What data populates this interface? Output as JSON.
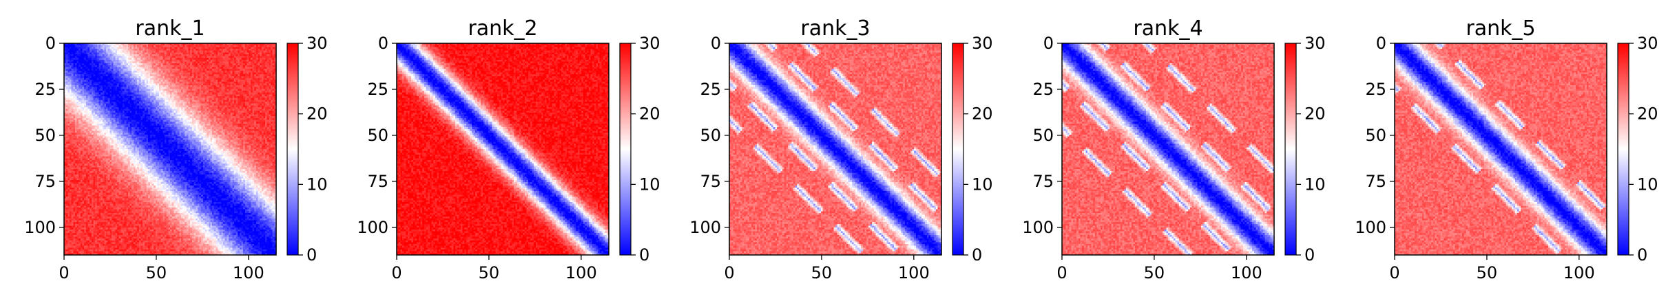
{
  "chart_data": [
    {
      "type": "heatmap",
      "title": "rank_1",
      "matrix_size": 116,
      "xlim": [
        0,
        115
      ],
      "ylim": [
        115,
        0
      ],
      "x_ticks": [
        0,
        50,
        100
      ],
      "y_ticks": [
        0,
        25,
        50,
        75,
        100
      ],
      "colorbar": {
        "min": 0,
        "max": 30,
        "ticks": [
          0,
          10,
          20,
          30
        ],
        "colors": [
          "#0000ff",
          "#ffffff",
          "#ff0000"
        ]
      },
      "diagonal_band_width": 20,
      "off_diagonal_level": 27,
      "diagonal_blob_offsets": []
    },
    {
      "type": "heatmap",
      "title": "rank_2",
      "matrix_size": 116,
      "xlim": [
        0,
        115
      ],
      "ylim": [
        115,
        0
      ],
      "x_ticks": [
        0,
        50,
        100
      ],
      "y_ticks": [
        0,
        25,
        50,
        75,
        100
      ],
      "colorbar": {
        "min": 0,
        "max": 30,
        "ticks": [
          0,
          10,
          20,
          30
        ],
        "colors": [
          "#0000ff",
          "#ffffff",
          "#ff0000"
        ]
      },
      "diagonal_band_width": 8,
      "off_diagonal_level": 29,
      "diagonal_blob_offsets": []
    },
    {
      "type": "heatmap",
      "title": "rank_3",
      "matrix_size": 116,
      "xlim": [
        0,
        115
      ],
      "ylim": [
        115,
        0
      ],
      "x_ticks": [
        0,
        50,
        100
      ],
      "y_ticks": [
        0,
        25,
        50,
        75,
        100
      ],
      "colorbar": {
        "min": 0,
        "max": 30,
        "ticks": [
          0,
          10,
          20,
          30
        ],
        "colors": [
          "#0000ff",
          "#ffffff",
          "#ff0000"
        ]
      },
      "diagonal_band_width": 8,
      "off_diagonal_level": 24,
      "diagonal_blob_offsets": [
        22,
        42
      ]
    },
    {
      "type": "heatmap",
      "title": "rank_4",
      "matrix_size": 116,
      "xlim": [
        0,
        115
      ],
      "ylim": [
        115,
        0
      ],
      "x_ticks": [
        0,
        50,
        100
      ],
      "y_ticks": [
        0,
        25,
        50,
        75,
        100
      ],
      "colorbar": {
        "min": 0,
        "max": 30,
        "ticks": [
          0,
          10,
          20,
          30
        ],
        "colors": [
          "#0000ff",
          "#ffffff",
          "#ff0000"
        ]
      },
      "diagonal_band_width": 8,
      "off_diagonal_level": 24,
      "diagonal_blob_offsets": [
        22,
        46
      ]
    },
    {
      "type": "heatmap",
      "title": "rank_5",
      "matrix_size": 116,
      "xlim": [
        0,
        115
      ],
      "ylim": [
        115,
        0
      ],
      "x_ticks": [
        0,
        50,
        100
      ],
      "y_ticks": [
        0,
        25,
        50,
        75,
        100
      ],
      "colorbar": {
        "min": 0,
        "max": 30,
        "ticks": [
          0,
          10,
          20,
          30
        ],
        "colors": [
          "#0000ff",
          "#ffffff",
          "#ff0000"
        ]
      },
      "diagonal_band_width": 8,
      "off_diagonal_level": 24,
      "diagonal_blob_offsets": [
        24
      ]
    }
  ]
}
